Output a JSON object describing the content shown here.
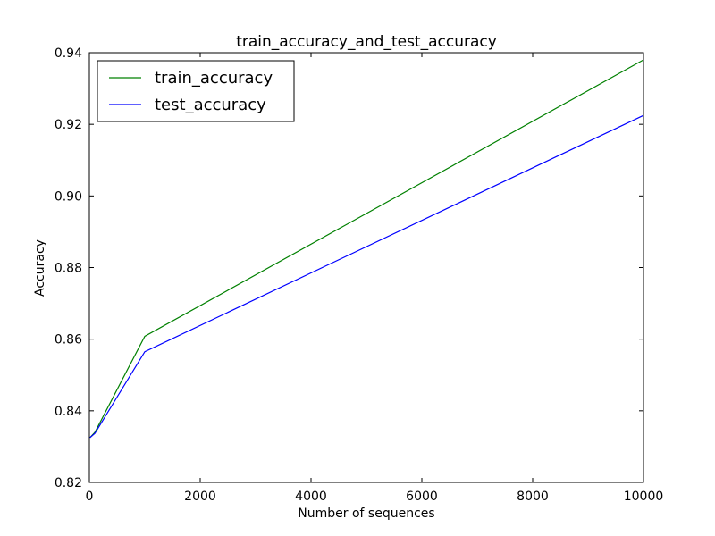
{
  "chart_data": {
    "type": "line",
    "title": "train_accuracy_and_test_accuracy",
    "xlabel": "Number of sequences",
    "ylabel": "Accuracy",
    "xlim": [
      0,
      10000
    ],
    "ylim": [
      0.82,
      0.94
    ],
    "xticks": [
      0,
      2000,
      4000,
      6000,
      8000,
      10000
    ],
    "yticks": [
      0.82,
      0.84,
      0.86,
      0.88,
      0.9,
      0.92,
      0.94
    ],
    "xtick_labels": [
      "0",
      "2000",
      "4000",
      "6000",
      "8000",
      "10000"
    ],
    "ytick_labels": [
      "0.82",
      "0.84",
      "0.86",
      "0.88",
      "0.90",
      "0.92",
      "0.94"
    ],
    "grid": false,
    "legend_position": "top-left",
    "x": [
      10,
      100,
      1000,
      10000
    ],
    "series": [
      {
        "name": "train_accuracy",
        "color": "#008000",
        "values": [
          0.8325,
          0.834,
          0.8608,
          0.938
        ]
      },
      {
        "name": "test_accuracy",
        "color": "#0000ff",
        "values": [
          0.8325,
          0.8337,
          0.8565,
          0.9225
        ]
      }
    ]
  }
}
